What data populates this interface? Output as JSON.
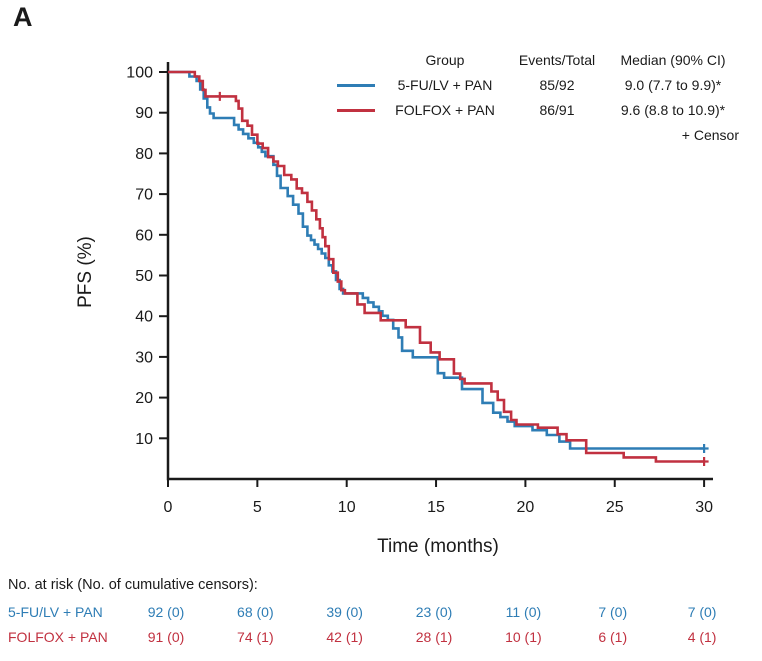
{
  "panel_label": "A",
  "colors": {
    "blue": "#2E7DB5",
    "red": "#C13140",
    "axis": "#1A1A1A"
  },
  "chart_data": {
    "type": "line",
    "subtype": "kaplan-meier-step",
    "xlabel": "Time (months)",
    "ylabel": "PFS (%)",
    "xlim": [
      0,
      30.5
    ],
    "ylim": [
      0,
      100
    ],
    "xticks": [
      0,
      5,
      10,
      15,
      20,
      25,
      30
    ],
    "yticks": [
      10,
      20,
      30,
      40,
      50,
      60,
      70,
      80,
      90,
      100
    ],
    "grid": false,
    "legend_position": "top-right",
    "legend": {
      "headers": [
        "Group",
        "Events/Total",
        "Median (90% CI)"
      ],
      "censor_note": "+ Censor"
    },
    "series": [
      {
        "name": "5-FU/LV + PAN",
        "color": "#2E7DB5",
        "events_total": "85/92",
        "median_ci": "9.0 (7.7 to 9.9)*",
        "steps": [
          [
            0,
            100
          ],
          [
            1.2,
            98.9
          ],
          [
            1.6,
            97.8
          ],
          [
            1.8,
            95.7
          ],
          [
            2.0,
            93.5
          ],
          [
            2.2,
            91.3
          ],
          [
            2.35,
            89.8
          ],
          [
            2.55,
            88.7
          ],
          [
            3.7,
            87.0
          ],
          [
            3.95,
            85.9
          ],
          [
            4.2,
            84.8
          ],
          [
            4.5,
            83.7
          ],
          [
            4.8,
            82.6
          ],
          [
            5.05,
            81.5
          ],
          [
            5.25,
            80.4
          ],
          [
            5.45,
            79.3
          ],
          [
            5.9,
            77.2
          ],
          [
            6.1,
            74.5
          ],
          [
            6.3,
            71.5
          ],
          [
            6.7,
            69.5
          ],
          [
            7.0,
            67.4
          ],
          [
            7.3,
            65.2
          ],
          [
            7.55,
            62.0
          ],
          [
            7.8,
            59.8
          ],
          [
            8.0,
            58.7
          ],
          [
            8.2,
            57.6
          ],
          [
            8.4,
            56.5
          ],
          [
            8.6,
            55.4
          ],
          [
            8.8,
            54.3
          ],
          [
            9.0,
            52.5
          ],
          [
            9.2,
            51.0
          ],
          [
            9.4,
            48.9
          ],
          [
            9.6,
            46.7
          ],
          [
            9.8,
            45.6
          ],
          [
            10.9,
            44.5
          ],
          [
            11.2,
            43.4
          ],
          [
            11.5,
            42.3
          ],
          [
            11.8,
            41.2
          ],
          [
            12.0,
            40.1
          ],
          [
            12.3,
            39.1
          ],
          [
            12.6,
            37.0
          ],
          [
            12.9,
            34.8
          ],
          [
            13.1,
            31.5
          ],
          [
            13.7,
            29.9
          ],
          [
            15.1,
            26.0
          ],
          [
            15.45,
            24.9
          ],
          [
            16.45,
            22.1
          ],
          [
            17.6,
            18.7
          ],
          [
            18.2,
            16.3
          ],
          [
            18.6,
            15.2
          ],
          [
            19.0,
            14.1
          ],
          [
            19.4,
            13.0
          ],
          [
            20.4,
            12.0
          ],
          [
            21.2,
            10.8
          ],
          [
            21.9,
            9.2
          ],
          [
            22.5,
            7.5
          ],
          [
            30,
            7.5
          ]
        ],
        "censors": [
          [
            30,
            7.5
          ]
        ]
      },
      {
        "name": "FOLFOX + PAN",
        "color": "#C13140",
        "events_total": "86/91",
        "median_ci": "9.6 (8.8 to 10.9)*",
        "steps": [
          [
            0,
            100
          ],
          [
            1.5,
            98.9
          ],
          [
            1.75,
            97.8
          ],
          [
            1.95,
            95.6
          ],
          [
            2.1,
            94.0
          ],
          [
            3.8,
            92.9
          ],
          [
            3.95,
            91.0
          ],
          [
            4.15,
            88.0
          ],
          [
            4.45,
            86.8
          ],
          [
            4.7,
            84.6
          ],
          [
            5.0,
            82.4
          ],
          [
            5.3,
            81.3
          ],
          [
            5.6,
            79.1
          ],
          [
            5.9,
            78.0
          ],
          [
            6.15,
            76.9
          ],
          [
            6.5,
            74.7
          ],
          [
            6.9,
            73.6
          ],
          [
            7.2,
            71.4
          ],
          [
            7.5,
            70.3
          ],
          [
            7.8,
            68.1
          ],
          [
            8.05,
            66.0
          ],
          [
            8.3,
            63.8
          ],
          [
            8.5,
            61.6
          ],
          [
            8.65,
            59.4
          ],
          [
            8.8,
            57.2
          ],
          [
            9.0,
            54.0
          ],
          [
            9.25,
            50.7
          ],
          [
            9.5,
            48.5
          ],
          [
            9.7,
            46.4
          ],
          [
            9.9,
            45.6
          ],
          [
            10.6,
            42.9
          ],
          [
            11.0,
            40.8
          ],
          [
            11.9,
            39.0
          ],
          [
            13.3,
            37.3
          ],
          [
            14.1,
            33.5
          ],
          [
            14.7,
            31.1
          ],
          [
            15.2,
            29.4
          ],
          [
            16.0,
            25.9
          ],
          [
            16.35,
            24.6
          ],
          [
            16.6,
            23.5
          ],
          [
            18.1,
            21.5
          ],
          [
            18.45,
            19.4
          ],
          [
            18.8,
            16.5
          ],
          [
            19.2,
            14.5
          ],
          [
            19.5,
            13.4
          ],
          [
            20.7,
            12.6
          ],
          [
            21.8,
            11.0
          ],
          [
            22.3,
            9.5
          ],
          [
            23.4,
            6.4
          ],
          [
            25.5,
            5.3
          ],
          [
            27.3,
            4.3
          ],
          [
            30,
            4.3
          ]
        ],
        "censors": [
          [
            2.9,
            94.0
          ],
          [
            30,
            4.3
          ]
        ]
      }
    ]
  },
  "risk_table": {
    "title": "No. at risk (No. of cumulative censors):",
    "timepoints": [
      0,
      5,
      10,
      15,
      20,
      25,
      30
    ],
    "rows": [
      {
        "label": "5-FU/LV + PAN",
        "color": "#2E7DB5",
        "values": [
          "92 (0)",
          "68 (0)",
          "39 (0)",
          "23 (0)",
          "11 (0)",
          "7 (0)",
          "7 (0)"
        ]
      },
      {
        "label": "FOLFOX + PAN",
        "color": "#C13140",
        "values": [
          "91 (0)",
          "74 (1)",
          "42 (1)",
          "28 (1)",
          "10 (1)",
          "6 (1)",
          "4 (1)"
        ]
      }
    ]
  }
}
